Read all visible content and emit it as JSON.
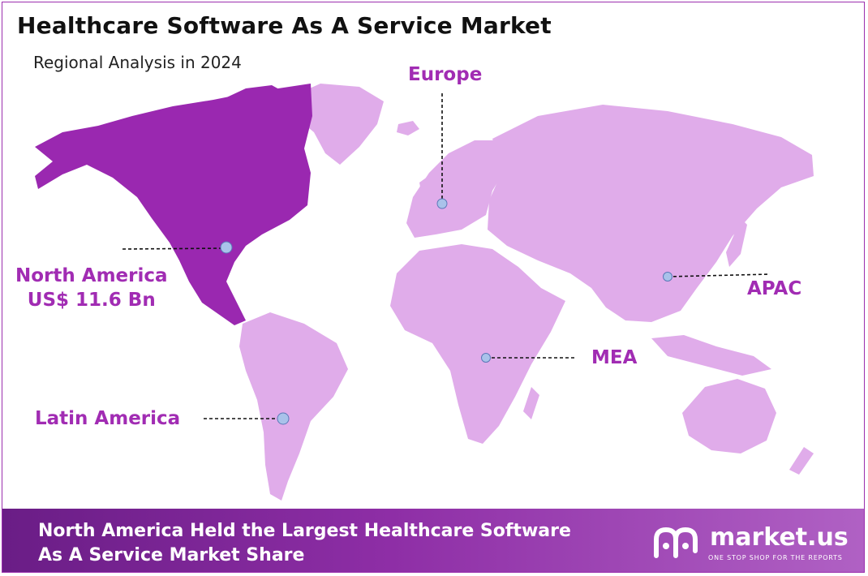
{
  "title": "Healthcare Software As A Service Market",
  "subtitle": "Regional Analysis in 2024",
  "regions": {
    "europe": {
      "label": "Europe"
    },
    "north_america": {
      "label": "North America",
      "value": "US$ 11.6 Bn"
    },
    "apac": {
      "label": "APAC"
    },
    "mea": {
      "label": "MEA"
    },
    "latin_america": {
      "label": "Latin America"
    }
  },
  "footer": {
    "line1": "North America Held the Largest Healthcare Software",
    "line2": "As A Service Market Share"
  },
  "brand": {
    "name": "market.us",
    "tagline": "ONE STOP SHOP FOR THE REPORTS"
  },
  "colors": {
    "highlight_region": "#9a28b0",
    "other_regions": "#e0acea",
    "label_text": "#a12cb3",
    "marker_fill": "#a9c2ea",
    "footer_start": "#6a1d86",
    "footer_end": "#b061c4"
  }
}
